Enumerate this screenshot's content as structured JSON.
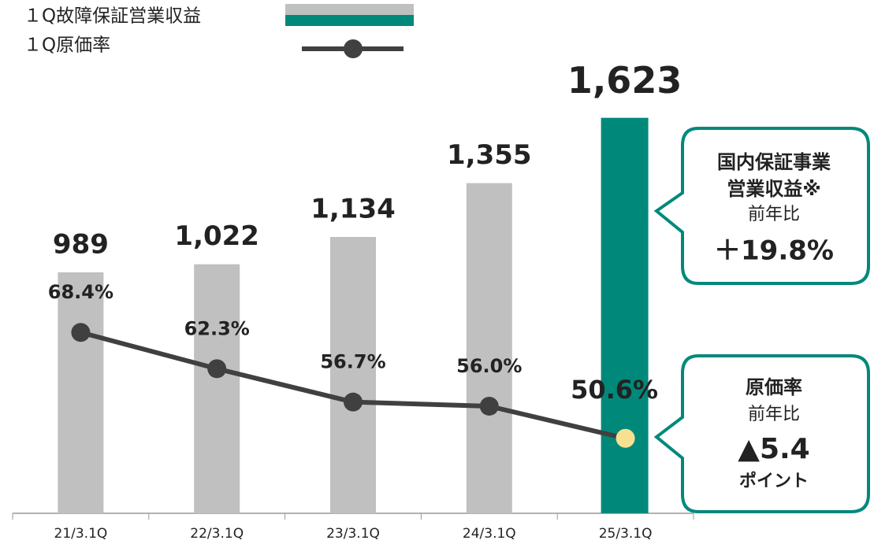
{
  "chart_data": {
    "type": "bar_line",
    "categories": [
      "21/3.1Q",
      "22/3.1Q",
      "23/3.1Q",
      "24/3.1Q",
      "25/3.1Q"
    ],
    "series": [
      {
        "name": "１Q故障保証営業収益",
        "type": "bar",
        "axis": "y",
        "color": "#c0c0c0",
        "colors": [
          "#c0c0c0",
          "#c0c0c0",
          "#c0c0c0",
          "#c0c0c0",
          "#00897b"
        ],
        "values": [
          989,
          1022,
          1134,
          1355,
          1623
        ],
        "value_labels": [
          "989",
          "1,022",
          "1,134",
          "1,355",
          "1,623"
        ]
      },
      {
        "name": "１Q原価率",
        "type": "line",
        "axis": "y2",
        "color": "#404040",
        "marker_colors": [
          "#404040",
          "#404040",
          "#404040",
          "#404040",
          "#f7e08f"
        ],
        "values": [
          68.4,
          62.3,
          56.7,
          56.0,
          50.6
        ],
        "value_labels": [
          "68.4%",
          "62.3%",
          "56.7%",
          "56.0%",
          "50.6%"
        ]
      }
    ],
    "ylim": [
      0,
      2100
    ],
    "y2lim": [
      38,
      124
    ],
    "annotations": [
      {
        "lines": [
          "国内保証事業",
          "営業収益※",
          "前年比",
          "＋19.8%"
        ]
      },
      {
        "lines": [
          "原価率",
          "前年比",
          "▲5.4",
          "ポイント"
        ]
      }
    ]
  }
}
